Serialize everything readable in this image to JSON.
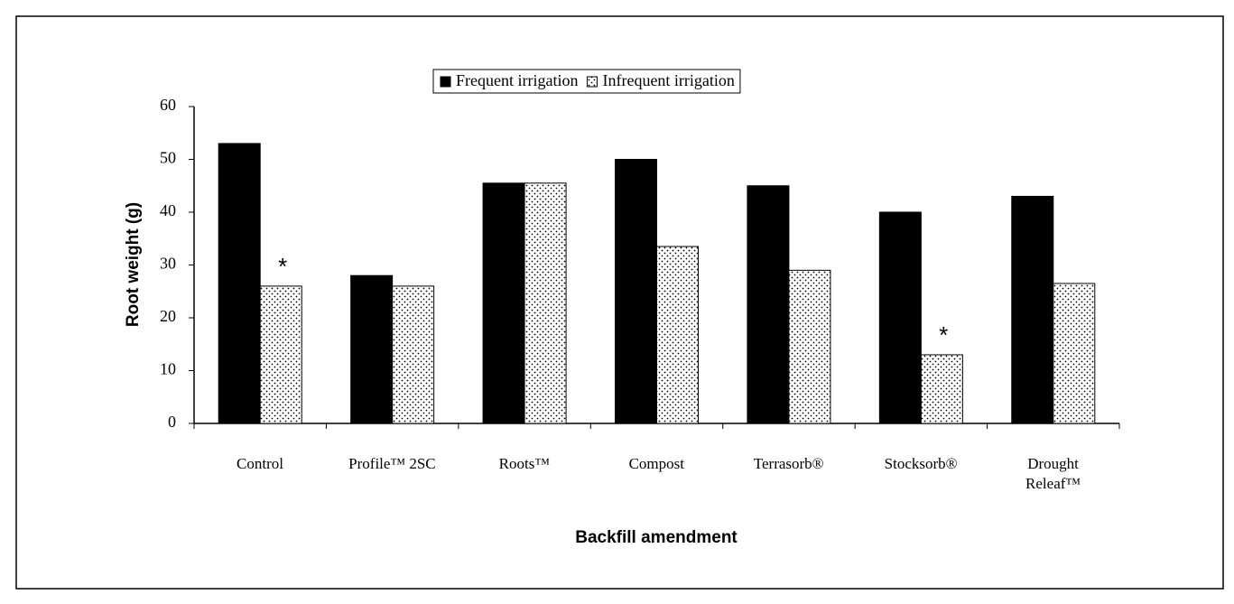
{
  "chart_data": {
    "type": "bar",
    "xlabel": "Backfill amendment",
    "ylabel": "Root weight (g)",
    "categories": [
      "Control",
      "Profile™ 2SC",
      "Roots™",
      "Compost",
      "Terrasorb®",
      "Stocksorb®",
      "Drought\nReleaf™"
    ],
    "series": [
      {
        "name": "Frequent irrigation",
        "color": "#000000",
        "values": [
          53,
          28,
          45.5,
          50,
          45,
          40,
          43
        ]
      },
      {
        "name": "Infrequent irrigation",
        "color": "#ffffff",
        "values": [
          26,
          26,
          45.5,
          33.5,
          29,
          13,
          26.5
        ]
      }
    ],
    "annotations": [
      {
        "text": "*",
        "x": "Control",
        "series": "Infrequent irrigation"
      },
      {
        "text": "*",
        "x": "Stocksorb®",
        "series": "Infrequent irrigation"
      }
    ],
    "ylim": [
      0,
      60
    ],
    "yticks": [
      0,
      10,
      20,
      30,
      40,
      50,
      60
    ],
    "grid": false,
    "legend": "top"
  }
}
